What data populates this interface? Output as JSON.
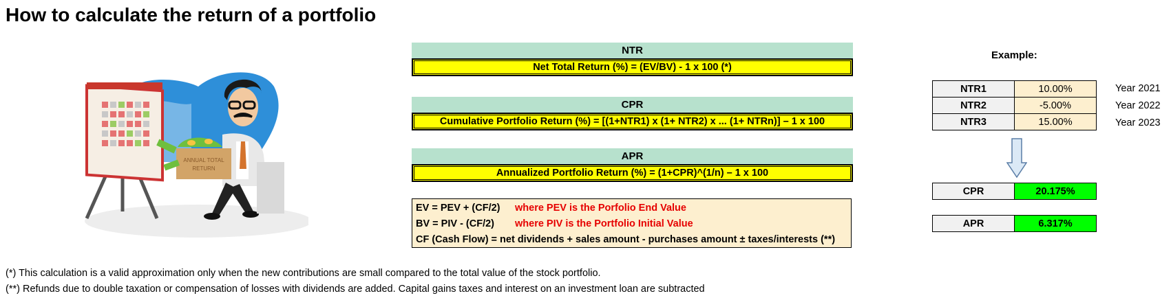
{
  "title": "How to calculate the return of a portfolio",
  "illustration": {
    "box_label_line1": "ANNUAL TOTAL",
    "box_label_line2": "RETURN"
  },
  "formulas": [
    {
      "head": "NTR",
      "formula": "Net Total Return (%) = (EV/BV) - 1 x 100  (*)"
    },
    {
      "head": "CPR",
      "formula": "Cumulative Portfolio Return (%) = [(1+NTR1) x (1+ NTR2) x ... (1+ NTRn)] – 1 x 100"
    },
    {
      "head": "APR",
      "formula": "Annualized Portfolio Return (%) = (1+CPR)^(1/n)  – 1 x 100"
    }
  ],
  "definitions": [
    {
      "text": "EV = PEV + (CF/2)",
      "note": "where PEV is the Porfolio End Value"
    },
    {
      "text": "BV = PIV - (CF/2)",
      "note": "where PIV is the Portfolio Initial Value"
    },
    {
      "text": "CF (Cash Flow) = net dividends + sales amount - purchases amount ± taxes/interests (**)",
      "note": ""
    }
  ],
  "notes": [
    "(*) This calculation is a valid approximation only when the new contributions are small compared to the total value of the stock portfolio.",
    "(**)  Refunds due to double taxation or compensation of losses with dividends are added. Capital gains taxes and interest on an investment loan are subtracted"
  ],
  "example": {
    "title": "Example:",
    "rows": [
      {
        "label": "NTR1",
        "value": "10.00%",
        "year": "Year 2021"
      },
      {
        "label": "NTR2",
        "value": "-5.00%",
        "year": "Year 2022"
      },
      {
        "label": "NTR3",
        "value": "15.00%",
        "year": "Year 2023"
      }
    ],
    "results": [
      {
        "label": "CPR",
        "value": "20.175%"
      },
      {
        "label": "APR",
        "value": "6.317%"
      }
    ]
  },
  "colors": {
    "header_green": "#b7e1cd",
    "formula_yellow": "#ffff00",
    "definition_bg": "#fdefcf",
    "note_red": "#e60000",
    "result_green": "#00ff00"
  }
}
